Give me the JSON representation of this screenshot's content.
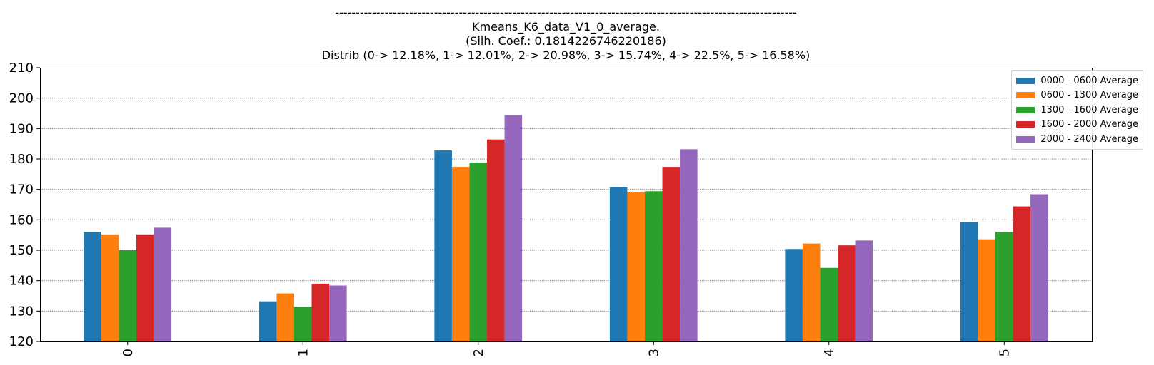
{
  "chart_data": {
    "type": "bar",
    "title_lines": [
      "----------------------------------------------------------------------------------------------------------------",
      "Kmeans_K6_data_V1_0_average.",
      "(Silh. Coef.: 0.1814226746220186)",
      "Distrib (0-> 12.18%, 1-> 12.01%, 2-> 20.98%, 3-> 15.74%, 4-> 22.5%, 5-> 16.58%)"
    ],
    "categories": [
      "0",
      "1",
      "2",
      "3",
      "4",
      "5"
    ],
    "series": [
      {
        "name": "0000 - 0600 Average",
        "color": "#1f77b4",
        "values": [
          156,
          133.2,
          182.8,
          170.8,
          150.4,
          159.2
        ]
      },
      {
        "name": "0600 - 1300 Average",
        "color": "#ff7f0e",
        "values": [
          155.2,
          135.8,
          177.4,
          169.2,
          152.2,
          153.6
        ]
      },
      {
        "name": "1300 - 1600 Average",
        "color": "#2ca02c",
        "values": [
          150,
          131.4,
          178.8,
          169.4,
          144.2,
          156
        ]
      },
      {
        "name": "1600 - 2000 Average",
        "color": "#d62728",
        "values": [
          155.2,
          139,
          186.4,
          177.4,
          151.6,
          164.4
        ]
      },
      {
        "name": "2000 - 2400 Average",
        "color": "#9467bd",
        "values": [
          157.4,
          138.4,
          194.4,
          183.2,
          153.2,
          168.4
        ]
      }
    ],
    "ylim": [
      120,
      210
    ],
    "yticks": [
      "120",
      "130",
      "140",
      "150",
      "160",
      "170",
      "180",
      "190",
      "200",
      "210"
    ],
    "grid": "horizontal dotted",
    "legend_position": "top-right"
  }
}
